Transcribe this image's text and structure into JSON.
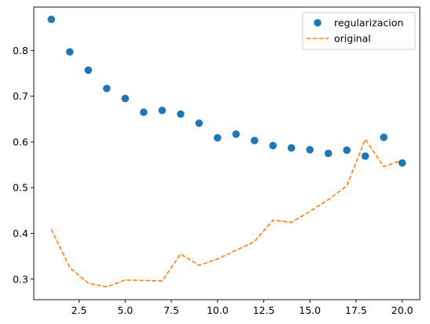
{
  "chart_data": {
    "type": "scatter+line",
    "x": [
      1,
      2,
      3,
      4,
      5,
      6,
      7,
      8,
      9,
      10,
      11,
      12,
      13,
      14,
      15,
      16,
      17,
      18,
      19,
      20
    ],
    "series": [
      {
        "name": "regularizacion",
        "kind": "scatter",
        "color": "#1f77b4",
        "values": [
          0.868,
          0.797,
          0.757,
          0.717,
          0.695,
          0.665,
          0.669,
          0.661,
          0.641,
          0.609,
          0.617,
          0.603,
          0.592,
          0.587,
          0.583,
          0.575,
          0.582,
          0.569,
          0.61,
          0.554
        ]
      },
      {
        "name": "original",
        "kind": "line",
        "style": "dashed",
        "color": "#ff7f0e",
        "values": [
          0.409,
          0.325,
          0.291,
          0.283,
          0.298,
          0.297,
          0.296,
          0.355,
          0.33,
          0.344,
          0.363,
          0.382,
          0.429,
          0.424,
          0.448,
          0.474,
          0.504,
          0.606,
          0.546,
          0.56
        ]
      }
    ],
    "title": "",
    "xlabel": "",
    "ylabel": "",
    "xlim": [
      0.05,
      20.95
    ],
    "ylim": [
      0.255,
      0.895
    ],
    "xticks": [
      2.5,
      5.0,
      7.5,
      10.0,
      12.5,
      15.0,
      17.5,
      20.0
    ],
    "xtick_labels": [
      "2.5",
      "5.0",
      "7.5",
      "10.0",
      "12.5",
      "15.0",
      "17.5",
      "20.0"
    ],
    "yticks": [
      0.3,
      0.4,
      0.5,
      0.6,
      0.7,
      0.8
    ],
    "ytick_labels": [
      "0.3",
      "0.4",
      "0.5",
      "0.6",
      "0.7",
      "0.8"
    ],
    "grid": false,
    "legend_position": "top-right"
  }
}
